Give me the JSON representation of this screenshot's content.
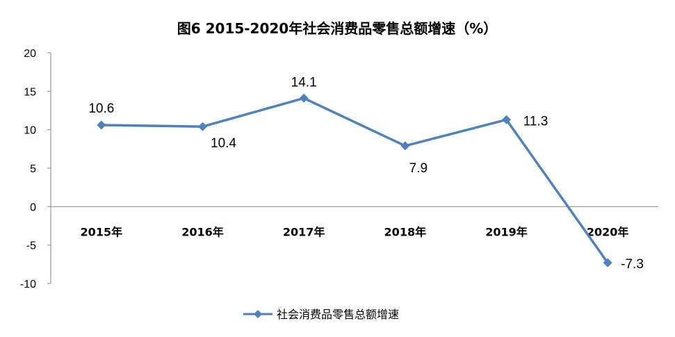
{
  "chart_data": {
    "type": "line",
    "title": "图6  2015-2020年社会消费品零售总额增速（%）",
    "categories": [
      "2015年",
      "2016年",
      "2017年",
      "2018年",
      "2019年",
      "2020年"
    ],
    "series": [
      {
        "name": "社会消费品零售总额增速",
        "values": [
          10.6,
          10.4,
          14.1,
          7.9,
          11.3,
          -7.3
        ],
        "color": "#4f81bd"
      }
    ],
    "data_labels": [
      "10.6",
      "10.4",
      "14.1",
      "7.9",
      "11.3",
      "-7.3"
    ],
    "ylim": [
      -10,
      20
    ],
    "yticks": [
      -10,
      -5,
      0,
      5,
      10,
      15,
      20
    ],
    "ytick_labels": [
      "-10",
      "-5",
      "0",
      "5",
      "10",
      "15",
      "20"
    ],
    "grid": false,
    "legend_position": "bottom"
  }
}
